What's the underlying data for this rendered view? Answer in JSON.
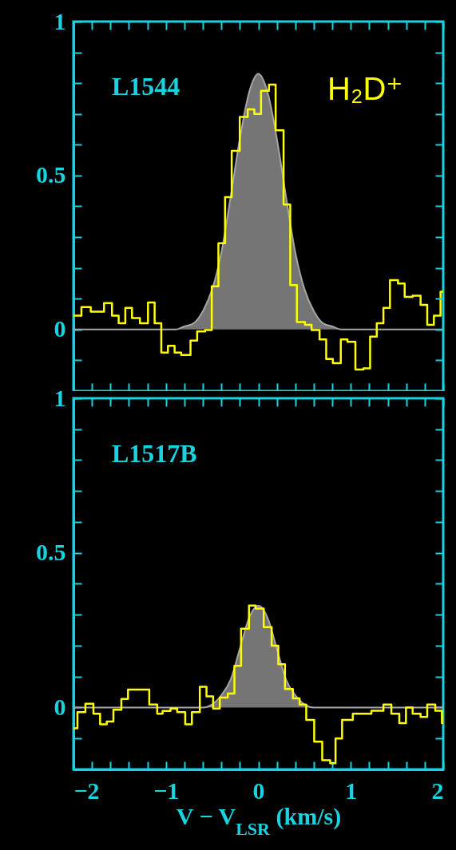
{
  "chart_data": [
    {
      "type": "step",
      "annotations": [
        "L1544",
        "H₂D⁺"
      ],
      "tick_labels": "y",
      "xlim": [
        -2,
        2
      ],
      "ylim": [
        -0.2,
        1
      ],
      "xticks": [
        -2,
        {
          "value": -1.8,
          "label": null
        },
        {
          "value": -1.6,
          "label": null
        },
        {
          "value": -1.4,
          "label": null
        },
        {
          "value": -1.2,
          "label": null
        },
        -1,
        {
          "value": -0.8,
          "label": null
        },
        {
          "value": -0.6,
          "label": null
        },
        {
          "value": -0.4,
          "label": null
        },
        {
          "value": -0.2,
          "label": null
        },
        0,
        {
          "value": 0.2,
          "label": null
        },
        {
          "value": 0.4,
          "label": null
        },
        {
          "value": 0.6,
          "label": null
        },
        {
          "value": 0.8,
          "label": null
        },
        1,
        {
          "value": 1.2,
          "label": null
        },
        {
          "value": 1.4,
          "label": null
        },
        {
          "value": 1.6,
          "label": null
        },
        {
          "value": 1.8,
          "label": null
        },
        2
      ],
      "yticks": [
        {
          "value": -0.2,
          "label": null
        },
        {
          "value": -0.1,
          "label": null
        },
        0,
        {
          "value": 0.1,
          "label": null
        },
        {
          "value": 0.2,
          "label": null
        },
        {
          "value": 0.3,
          "label": null
        },
        {
          "value": 0.4,
          "label": null
        },
        0.5,
        {
          "value": 0.6,
          "label": null
        },
        {
          "value": 0.7,
          "label": null
        },
        {
          "value": 0.8,
          "label": null
        },
        {
          "value": 0.9,
          "label": null
        },
        1
      ],
      "series": [
        {
          "type": "area",
          "color": "#a6a6a6",
          "x": [
            -2,
            -1,
            -0.9,
            -0.8,
            -0.7,
            -0.6,
            -0.5,
            -0.4,
            -0.3,
            -0.2,
            -0.1,
            0,
            0.1,
            0.2,
            0.3,
            0.4,
            0.5,
            0.6,
            0.7,
            0.8,
            0.9,
            1,
            2
          ],
          "values": [
            0,
            0,
            0,
            0.01,
            0.02,
            0.06,
            0.13,
            0.25,
            0.43,
            0.62,
            0.77,
            0.83,
            0.77,
            0.62,
            0.43,
            0.25,
            0.13,
            0.06,
            0.02,
            0.01,
            0,
            0,
            0
          ]
        },
        {
          "type": "step",
          "color": "#ffff00",
          "x": [
            -2,
            -1.914,
            -1.813,
            -1.669,
            -1.583,
            -1.511,
            -1.439,
            -1.367,
            -1.281,
            -1.194,
            -1.122,
            -1.05,
            -0.978,
            -0.906,
            -0.835,
            -0.734,
            -0.662,
            -0.576,
            -0.504,
            -0.432,
            -0.36,
            -0.288,
            -0.201,
            -0.115,
            -0.043,
            0.029,
            0.115,
            0.187,
            0.273,
            0.345,
            0.417,
            0.504,
            0.576,
            0.662,
            0.734,
            0.806,
            0.892,
            0.964,
            1.05,
            1.137,
            1.209,
            1.281,
            1.353,
            1.424,
            1.511,
            1.583,
            1.669,
            1.755,
            1.827,
            1.899,
            1.971,
            2
          ],
          "values": [
            0.045,
            0.073,
            0.058,
            0.086,
            0.045,
            0.02,
            0.07,
            0.037,
            0.02,
            0.088,
            0.02,
            -0.075,
            -0.053,
            -0.075,
            -0.083,
            -0.036,
            -0.006,
            -0.002,
            0.14,
            0.28,
            0.43,
            0.58,
            0.69,
            0.715,
            0.7,
            0.775,
            0.795,
            0.647,
            0.406,
            0.144,
            0.024,
            0.015,
            -0.002,
            -0.032,
            -0.096,
            -0.109,
            -0.032,
            -0.04,
            -0.13,
            -0.126,
            -0.023,
            0.02,
            0.07,
            0.16,
            0.149,
            0.106,
            0.11,
            0.08,
            0.015,
            0.045,
            0.123,
            0.123
          ]
        }
      ]
    },
    {
      "type": "step",
      "annotations": [
        "L1517B"
      ],
      "xlabel": "V − V$_{LSR}$ (km/s)",
      "xlim": [
        -2,
        2
      ],
      "ylim": [
        -0.2,
        1
      ],
      "xticks": [
        -2,
        {
          "value": -1.8,
          "label": null
        },
        {
          "value": -1.6,
          "label": null
        },
        {
          "value": -1.4,
          "label": null
        },
        {
          "value": -1.2,
          "label": null
        },
        -1,
        {
          "value": -0.8,
          "label": null
        },
        {
          "value": -0.6,
          "label": null
        },
        {
          "value": -0.4,
          "label": null
        },
        {
          "value": -0.2,
          "label": null
        },
        0,
        {
          "value": 0.2,
          "label": null
        },
        {
          "value": 0.4,
          "label": null
        },
        {
          "value": 0.6,
          "label": null
        },
        {
          "value": 0.8,
          "label": null
        },
        1,
        {
          "value": 1.2,
          "label": null
        },
        {
          "value": 1.4,
          "label": null
        },
        {
          "value": 1.6,
          "label": null
        },
        {
          "value": 1.8,
          "label": null
        },
        2
      ],
      "yticks": [
        {
          "value": -0.2,
          "label": null
        },
        {
          "value": -0.1,
          "label": null
        },
        0,
        {
          "value": 0.1,
          "label": null
        },
        {
          "value": 0.2,
          "label": null
        },
        {
          "value": 0.3,
          "label": null
        },
        {
          "value": 0.4,
          "label": null
        },
        0.5,
        {
          "value": 0.6,
          "label": null
        },
        {
          "value": 0.7,
          "label": null
        },
        {
          "value": 0.8,
          "label": null
        },
        {
          "value": 0.9,
          "label": null
        },
        1
      ],
      "series": [
        {
          "type": "area",
          "color": "#a6a6a6",
          "x": [
            -2,
            -0.6,
            -0.5,
            -0.4,
            -0.3,
            -0.2,
            -0.1,
            0,
            0.1,
            0.2,
            0.3,
            0.4,
            0.5,
            0.6,
            2
          ],
          "values": [
            0,
            0,
            0.01,
            0.04,
            0.09,
            0.19,
            0.29,
            0.33,
            0.29,
            0.19,
            0.09,
            0.04,
            0.01,
            0,
            0
          ]
        },
        {
          "type": "step",
          "color": "#ffff00",
          "x": [
            -2,
            -1.957,
            -1.871,
            -1.784,
            -1.712,
            -1.64,
            -1.568,
            -1.482,
            -1.41,
            -1.18,
            -1.094,
            -1.036,
            -0.95,
            -0.878,
            -0.791,
            -0.719,
            -0.633,
            -0.561,
            -0.489,
            -0.417,
            -0.331,
            -0.259,
            -0.187,
            -0.101,
            -0.029,
            0.058,
            0.144,
            0.216,
            0.288,
            0.374,
            0.446,
            0.518,
            0.604,
            0.691,
            0.777,
            0.835,
            0.906,
            1.022,
            1.079,
            1.223,
            1.353,
            1.439,
            1.525,
            1.597,
            1.669,
            1.755,
            1.827,
            1.914,
            1.986,
            2
          ],
          "values": [
            -0.067,
            -0.015,
            0.012,
            -0.02,
            -0.054,
            -0.045,
            -0.007,
            0.028,
            0.058,
            0.01,
            -0.02,
            -0.011,
            -0.003,
            -0.015,
            -0.054,
            -0.015,
            0.067,
            0.036,
            -0.003,
            0.032,
            0.045,
            0.135,
            0.255,
            0.33,
            0.32,
            0.26,
            0.2,
            0.14,
            0.06,
            0.03,
            0.01,
            -0.04,
            -0.11,
            -0.17,
            -0.18,
            -0.1,
            -0.04,
            -0.02,
            -0.02,
            -0.01,
            0.01,
            -0.02,
            -0.05,
            0,
            -0.02,
            -0.03,
            0.01,
            -0.01,
            -0.05,
            -0.05
          ]
        }
      ]
    }
  ]
}
